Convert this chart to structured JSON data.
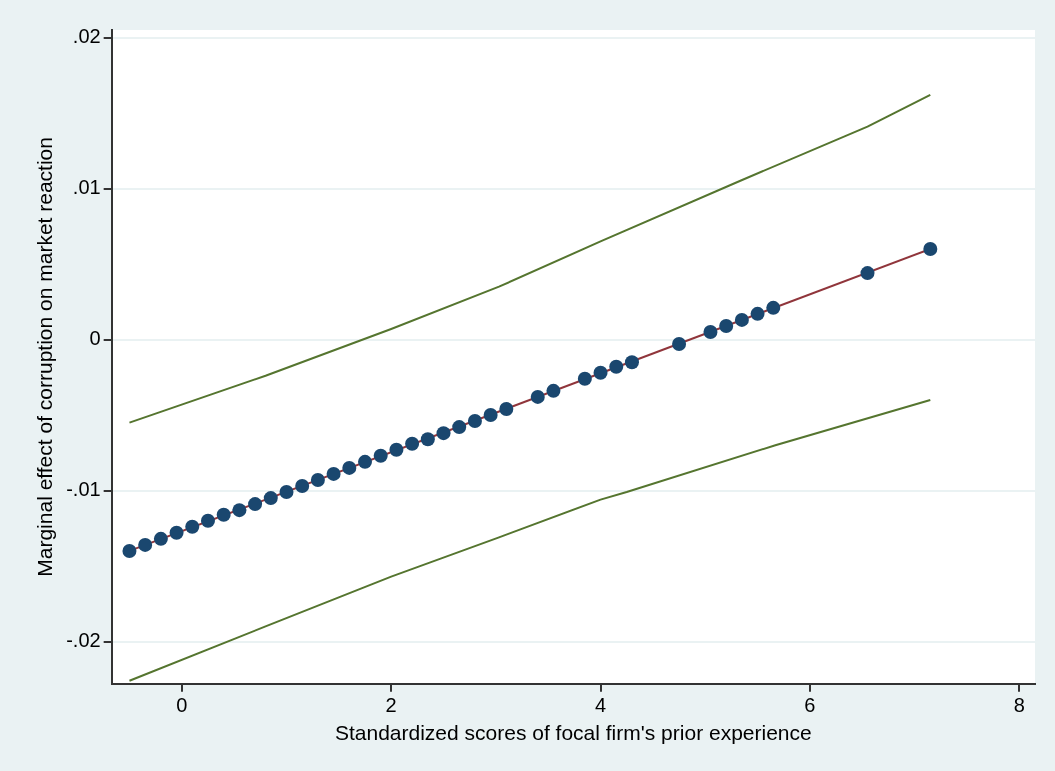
{
  "chart_data": {
    "type": "line",
    "xlabel": "Standardized scores of focal firm's prior experience",
    "ylabel": "Marginal effect of corruption on market reaction",
    "xlim": [
      -0.67,
      8.15
    ],
    "ylim": [
      -0.0228,
      0.0205
    ],
    "xticks": [
      0,
      2,
      4,
      6,
      8
    ],
    "yticks": [
      {
        "value": -0.02,
        "label": "-.02"
      },
      {
        "value": -0.01,
        "label": "-.01"
      },
      0,
      {
        "value": 0.01,
        "label": ".01"
      },
      {
        "value": 0.02,
        "label": ".02"
      }
    ],
    "grid": "y",
    "legend": false,
    "series": [
      {
        "type": "line",
        "color": "#55752f",
        "x": [
          -0.5,
          0.8,
          2.0,
          3.03,
          4.0,
          5.33,
          6.55,
          7.15
        ],
        "values": [
          -0.0055,
          -0.0024,
          0.0007,
          0.0035,
          0.0065,
          0.0105,
          0.0141,
          0.0162
        ]
      },
      {
        "type": "line",
        "color": "#55752f",
        "x": [
          -0.5,
          0.8,
          2.0,
          3.03,
          4.0,
          4.25,
          5.67,
          7.15
        ],
        "values": [
          -0.0226,
          -0.019,
          -0.0157,
          -0.0131,
          -0.0106,
          -0.0101,
          -0.007,
          -0.004
        ]
      },
      {
        "type": "line",
        "color": "#90353b",
        "marker": "none",
        "x": [
          -0.5,
          7.15
        ],
        "values": [
          -0.014,
          0.006
        ]
      },
      {
        "type": "scatter",
        "color": "#1a476f",
        "marker": "circle",
        "x": [
          -0.5,
          -0.35,
          -0.2,
          -0.05,
          0.1,
          0.25,
          0.4,
          0.55,
          0.7,
          0.85,
          1.0,
          1.15,
          1.3,
          1.45,
          1.6,
          1.75,
          1.9,
          2.05,
          2.2,
          2.35,
          2.5,
          2.65,
          2.8,
          2.95,
          3.1,
          3.4,
          3.55,
          3.85,
          4.0,
          4.15,
          4.3,
          4.75,
          5.05,
          5.2,
          5.35,
          5.5,
          5.65,
          6.55,
          7.15
        ],
        "values": [
          -0.014,
          -0.0136,
          -0.0132,
          -0.0128,
          -0.0124,
          -0.012,
          -0.0116,
          -0.0113,
          -0.0109,
          -0.0105,
          -0.0101,
          -0.0097,
          -0.0093,
          -0.0089,
          -0.0085,
          -0.0081,
          -0.0077,
          -0.0073,
          -0.0069,
          -0.0066,
          -0.0062,
          -0.0058,
          -0.0054,
          -0.005,
          -0.0046,
          -0.0038,
          -0.0034,
          -0.0026,
          -0.0022,
          -0.0018,
          -0.0015,
          -0.0003,
          0.0005,
          0.0009,
          0.0013,
          0.0017,
          0.0021,
          0.0044,
          0.006
        ]
      }
    ]
  }
}
